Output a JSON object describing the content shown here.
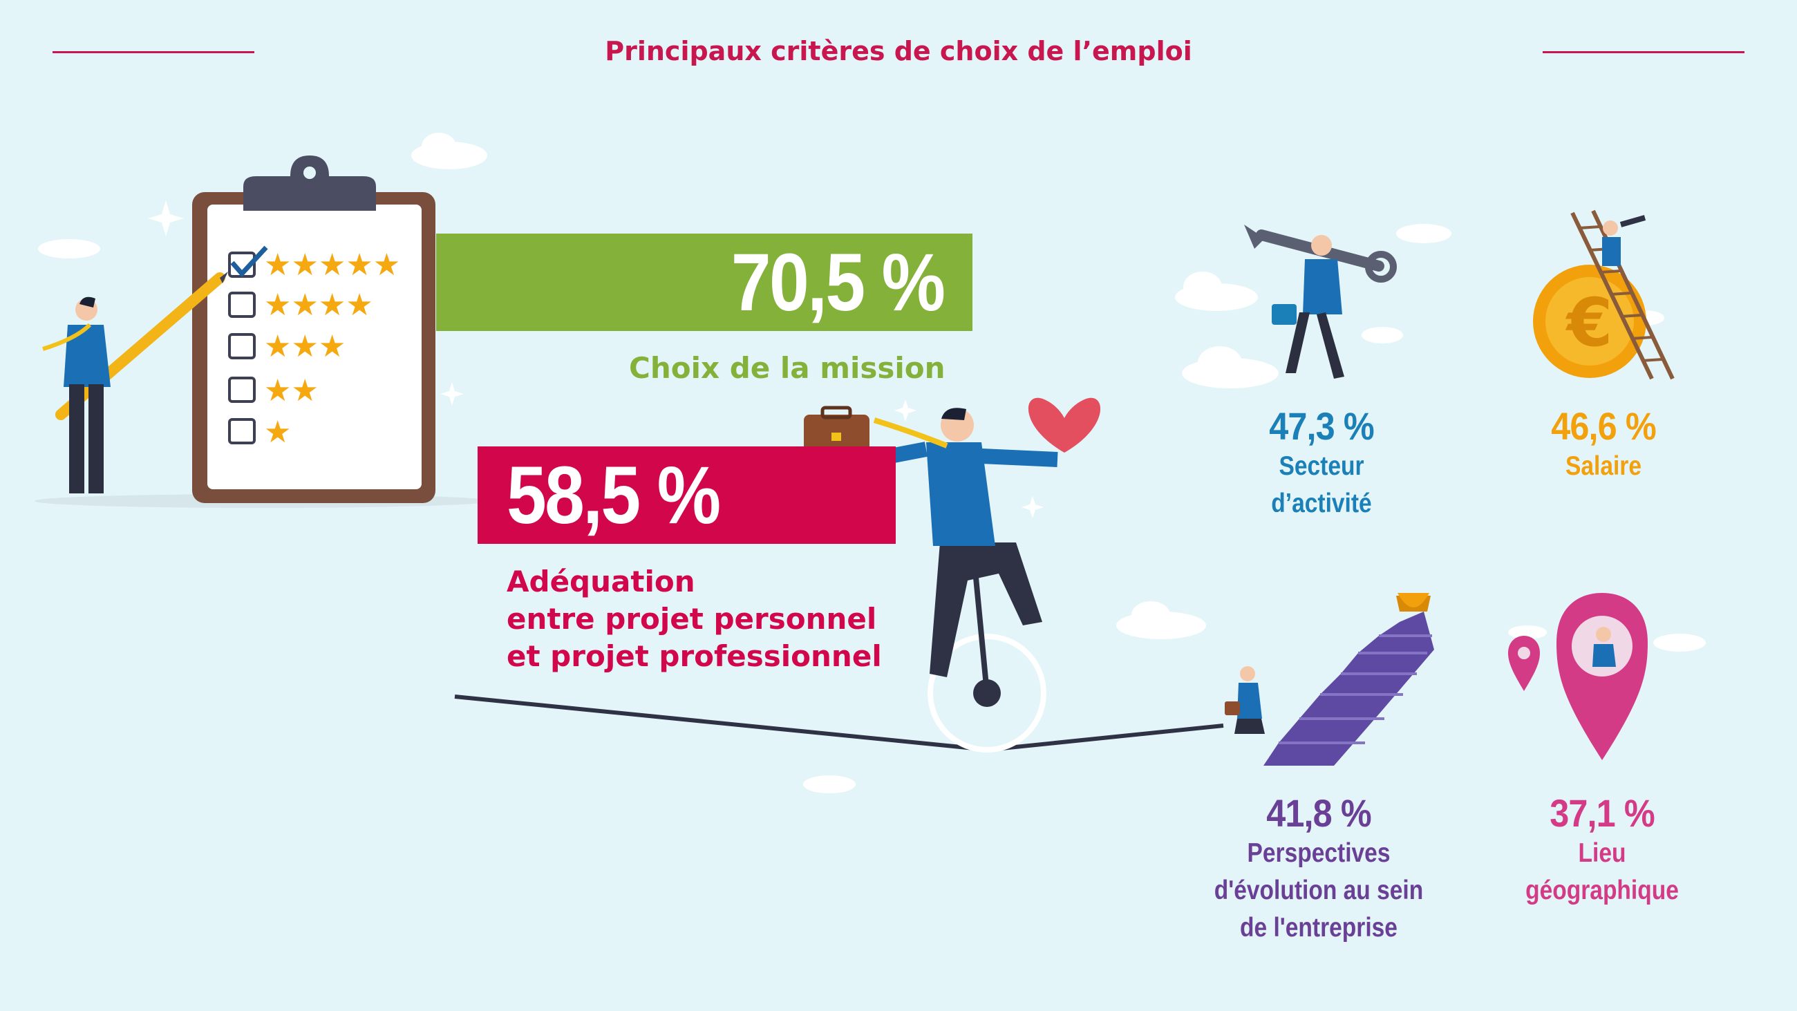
{
  "title": "Principaux critères de choix de l’emploi",
  "colors": {
    "background": "#e3f5f9",
    "title": "#c8164f",
    "mission": "#84b13a",
    "adequation": "#d2064b",
    "secteur": "#1b7fb8",
    "salaire": "#f2a10c",
    "perspectives": "#6a3f96",
    "lieu": "#d43b86"
  },
  "chart_data": {
    "type": "bar",
    "title": "Principaux critères de choix de l’emploi",
    "unit": "%",
    "categories": [
      "Choix de la mission",
      "Adéquation entre projet personnel et projet professionnel",
      "Secteur d’activité",
      "Salaire",
      "Perspectives d'évolution au sein de l'entreprise",
      "Lieu géographique"
    ],
    "values": [
      70.5,
      58.5,
      47.3,
      46.6,
      41.8,
      37.1
    ],
    "labels": [
      "70,5 %",
      "58,5 %",
      "47,3 %",
      "46,6 %",
      "41,8 %",
      "37,1 %"
    ]
  },
  "criteria": {
    "mission": {
      "value_label": "70,5 %",
      "name": "Choix de la mission"
    },
    "adequation": {
      "value_label": "58,5 %",
      "name_lines": [
        "Adéquation",
        "entre projet personnel",
        "et projet professionnel"
      ]
    },
    "secteur": {
      "value_label": "47,3 %",
      "name_lines": [
        "Secteur",
        "d’activité"
      ]
    },
    "salaire": {
      "value_label": "46,6 %",
      "name_lines": [
        "Salaire"
      ]
    },
    "perspectives": {
      "value_label": "41,8 %",
      "name_lines": [
        "Perspectives",
        "d'évolution au sein",
        "de l'entreprise"
      ]
    },
    "lieu": {
      "value_label": "37,1 %",
      "name_lines": [
        "Lieu",
        "géographique"
      ]
    }
  },
  "icons": [
    "clipboard-rating-icon",
    "businessman-pencil-icon",
    "unicycle-businessman-icon",
    "heart-icon",
    "briefcase-icon",
    "wrench-businessman-icon",
    "euro-coin-ladder-icon",
    "stairs-trophy-icon",
    "map-pin-icon"
  ]
}
